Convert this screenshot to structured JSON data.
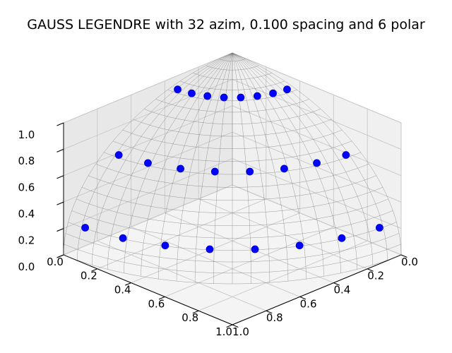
{
  "chart_data": {
    "type": "scatter",
    "title": "GAUSS LEGENDRE with 32 azim, 0.100 spacing and 6 polar",
    "xlabel": "",
    "ylabel": "",
    "zlabel": "",
    "xlim": [
      0,
      1
    ],
    "ylim": [
      0,
      1
    ],
    "zlim": [
      0,
      1
    ],
    "x_ticks": [
      "0.0",
      "0.2",
      "0.4",
      "0.6",
      "0.8",
      "1.0"
    ],
    "y_ticks": [
      "0.0",
      "0.2",
      "0.4",
      "0.6",
      "0.8",
      "1.0"
    ],
    "z_ticks": [
      "0.0",
      "0.2",
      "0.4",
      "0.6",
      "0.8",
      "1.0"
    ],
    "grid": true,
    "view": {
      "elevation_deg": 30,
      "azimuth_deg": 45
    },
    "surface": "unit sphere octant wireframe",
    "marker_color": "#0000ff",
    "series": [
      {
        "points_per_ring": 8,
        "azimuths_deg": [
          5.625,
          16.875,
          28.125,
          39.375,
          50.625,
          61.875,
          73.125,
          84.375
        ],
        "rings": [
          {
            "mu": 0.2386,
            "x": [
              0.967,
              0.9298,
              0.8573,
              0.7521,
              0.618,
              0.4593,
              0.2817,
              0.0951
            ],
            "y": [
              0.0951,
              0.2817,
              0.4593,
              0.618,
              0.7521,
              0.8573,
              0.9298,
              0.967
            ],
            "z": [
              0.2386,
              0.2386,
              0.2386,
              0.2386,
              0.2386,
              0.2386,
              0.2386,
              0.2386
            ]
          },
          {
            "mu": 0.6612,
            "x": [
              0.7464,
              0.7177,
              0.6617,
              0.5805,
              0.4771,
              0.3545,
              0.2175,
              0.0734
            ],
            "y": [
              0.0734,
              0.2175,
              0.3545,
              0.4771,
              0.5805,
              0.6617,
              0.7177,
              0.7464
            ],
            "z": [
              0.6612,
              0.6612,
              0.6612,
              0.6612,
              0.6612,
              0.6612,
              0.6612,
              0.6612
            ]
          },
          {
            "mu": 0.9325,
            "x": [
              0.3593,
              0.3455,
              0.3185,
              0.2794,
              0.2296,
              0.1707,
              0.1047,
              0.0353
            ],
            "y": [
              0.0353,
              0.1047,
              0.1707,
              0.2296,
              0.2794,
              0.3185,
              0.3455,
              0.3593
            ],
            "z": [
              0.9325,
              0.9325,
              0.9325,
              0.9325,
              0.9325,
              0.9325,
              0.9325,
              0.9325
            ]
          }
        ]
      }
    ]
  }
}
